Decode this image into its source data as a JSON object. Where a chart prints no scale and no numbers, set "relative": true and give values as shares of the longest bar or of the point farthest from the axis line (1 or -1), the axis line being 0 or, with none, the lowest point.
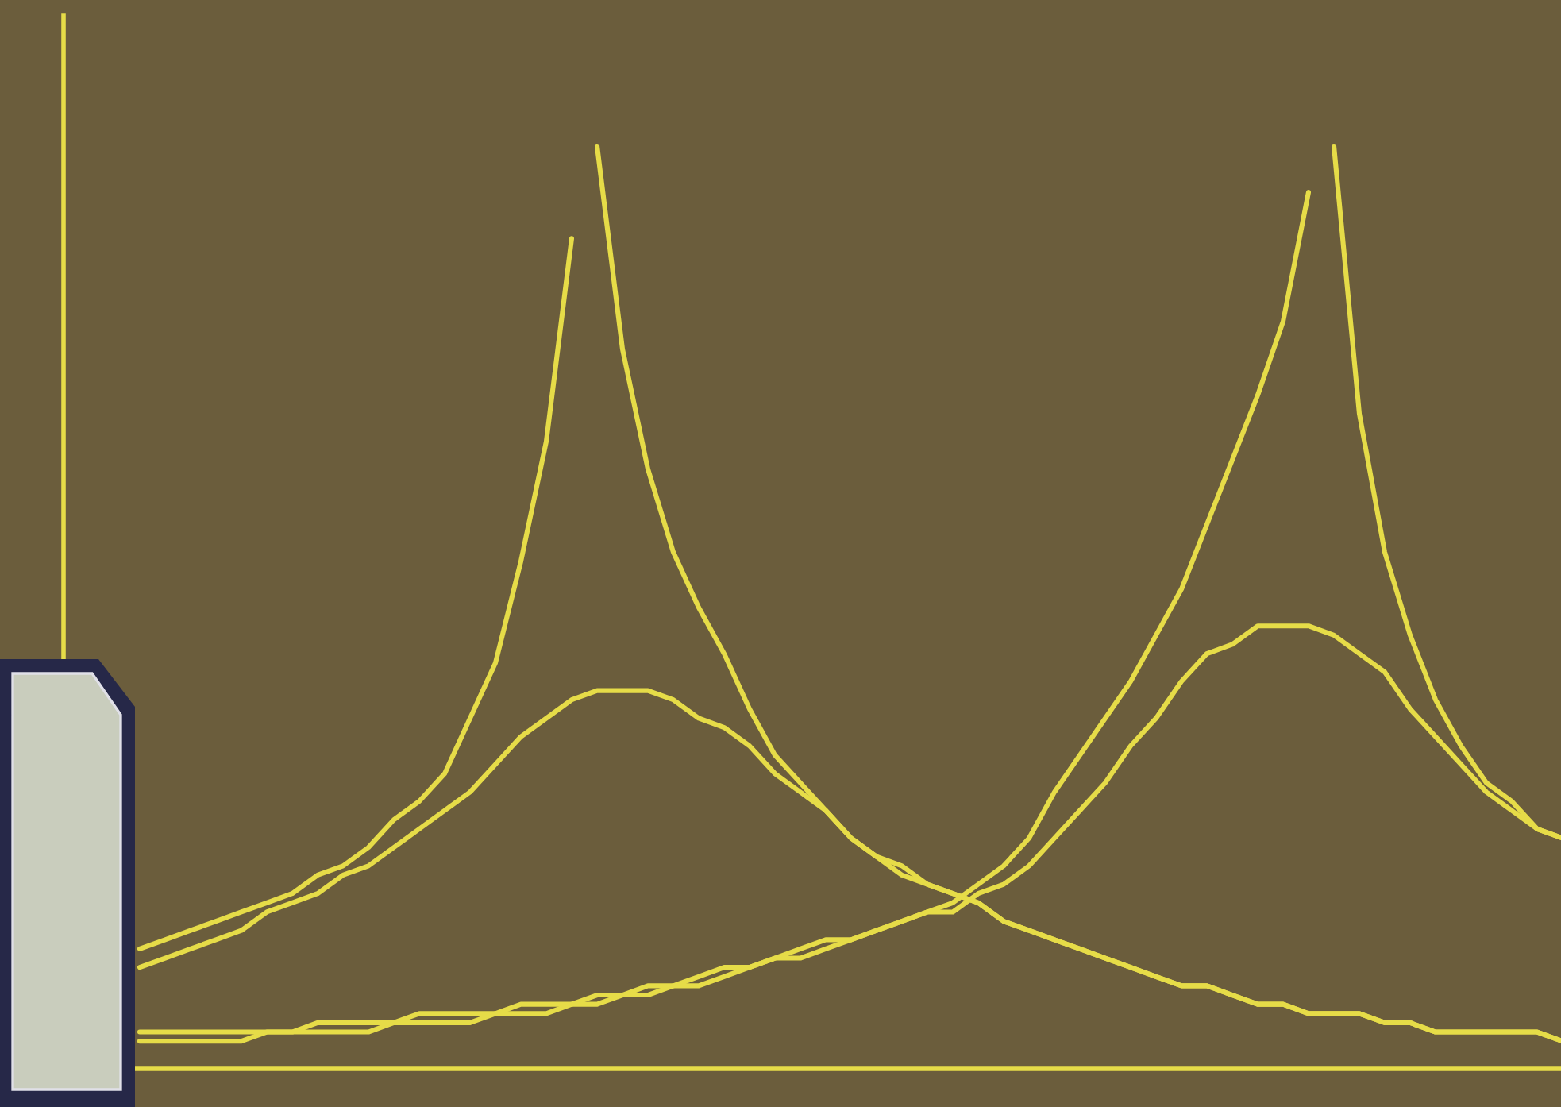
{
  "chart_data": {
    "type": "line",
    "relative": true,
    "marker": "none",
    "line_style": "solid",
    "categories": [
      null,
      null,
      null,
      null,
      null,
      null,
      null,
      null,
      null,
      null,
      null,
      null,
      null,
      null,
      null,
      null,
      null,
      null,
      null,
      null,
      null,
      null,
      null,
      null,
      null,
      null,
      null,
      null,
      null,
      null,
      null,
      null,
      null,
      null,
      null,
      null,
      null,
      null,
      null,
      null,
      null,
      null,
      null,
      null,
      null,
      null,
      null,
      null,
      null,
      null,
      null,
      null,
      null,
      null,
      null,
      null,
      null
    ],
    "series": [
      {
        "color": "#e6dc48",
        "values": [
          0.13,
          0.14,
          0.15,
          0.16,
          0.17,
          0.18,
          0.19,
          0.21,
          0.22,
          0.24,
          0.27,
          0.29,
          0.32,
          0.38,
          0.44,
          0.55,
          0.68,
          0.9,
          null,
          null,
          null,
          null,
          null,
          null,
          null,
          null,
          null,
          null,
          null,
          null,
          null,
          null,
          null,
          null,
          null,
          null,
          null,
          null,
          null,
          null,
          null,
          null,
          null,
          null,
          null,
          null,
          null,
          null,
          null,
          null,
          null,
          null,
          null,
          null,
          null,
          null,
          null
        ]
      },
      {
        "color": "#e6dc48",
        "values": [
          null,
          null,
          null,
          null,
          null,
          null,
          null,
          null,
          null,
          null,
          null,
          null,
          null,
          null,
          null,
          null,
          null,
          null,
          1.0,
          0.78,
          0.65,
          0.56,
          0.5,
          0.45,
          0.39,
          0.34,
          0.31,
          0.28,
          0.25,
          0.23,
          0.21,
          0.2,
          0.19,
          0.18,
          0.16,
          0.15,
          0.14,
          0.13,
          0.12,
          0.11,
          0.1,
          0.09,
          0.09,
          0.08,
          0.07,
          0.07,
          0.06,
          0.06,
          0.06,
          0.05,
          0.05,
          0.04,
          0.04,
          0.04,
          0.04,
          0.04,
          0.03
        ]
      },
      {
        "color": "#e6dc48",
        "values": [
          0.11,
          0.12,
          0.13,
          0.14,
          0.15,
          0.17,
          0.18,
          0.19,
          0.21,
          0.22,
          0.24,
          0.26,
          0.28,
          0.3,
          0.33,
          0.36,
          0.38,
          0.4,
          0.41,
          0.41,
          0.41,
          0.4,
          0.38,
          0.37,
          0.35,
          0.32,
          0.3,
          0.28,
          0.25,
          0.23,
          0.22,
          0.2,
          0.19,
          0.18,
          0.16,
          0.15,
          0.14,
          0.13,
          0.12,
          0.11,
          0.1,
          0.09,
          0.09,
          0.08,
          0.07,
          0.07,
          0.06,
          0.06,
          0.06,
          0.05,
          0.05,
          0.04,
          0.04,
          0.04,
          0.04,
          0.04,
          0.03
        ]
      },
      {
        "color": "#e6dc48",
        "values": [
          0.04,
          0.04,
          0.04,
          0.04,
          0.04,
          0.04,
          0.04,
          0.05,
          0.05,
          0.05,
          0.05,
          0.06,
          0.06,
          0.06,
          0.06,
          0.07,
          0.07,
          0.07,
          0.08,
          0.08,
          0.09,
          0.09,
          0.1,
          0.11,
          0.11,
          0.12,
          0.13,
          0.14,
          0.14,
          0.15,
          0.16,
          0.17,
          0.18,
          0.2,
          0.22,
          0.25,
          0.3,
          0.34,
          0.38,
          0.42,
          0.47,
          0.52,
          0.59,
          0.66,
          0.73,
          0.81,
          0.95,
          null,
          null,
          null,
          null,
          null,
          null,
          null,
          null,
          null,
          null
        ]
      },
      {
        "color": "#e6dc48",
        "values": [
          null,
          null,
          null,
          null,
          null,
          null,
          null,
          null,
          null,
          null,
          null,
          null,
          null,
          null,
          null,
          null,
          null,
          null,
          null,
          null,
          null,
          null,
          null,
          null,
          null,
          null,
          null,
          null,
          null,
          null,
          null,
          null,
          null,
          null,
          null,
          null,
          null,
          null,
          null,
          null,
          null,
          null,
          null,
          null,
          null,
          null,
          null,
          1.0,
          0.71,
          0.56,
          0.47,
          0.4,
          0.35,
          0.31,
          0.29,
          0.26,
          0.25
        ]
      },
      {
        "color": "#e6dc48",
        "values": [
          0.03,
          0.03,
          0.03,
          0.03,
          0.03,
          0.04,
          0.04,
          0.04,
          0.04,
          0.04,
          0.05,
          0.05,
          0.05,
          0.05,
          0.06,
          0.06,
          0.06,
          0.07,
          0.07,
          0.08,
          0.08,
          0.09,
          0.09,
          0.1,
          0.11,
          0.12,
          0.12,
          0.13,
          0.14,
          0.15,
          0.16,
          0.17,
          0.17,
          0.19,
          0.2,
          0.22,
          0.25,
          0.28,
          0.31,
          0.35,
          0.38,
          0.42,
          0.45,
          0.46,
          0.48,
          0.48,
          0.48,
          0.47,
          0.45,
          0.43,
          0.39,
          0.36,
          0.33,
          0.3,
          0.28,
          0.26,
          0.25
        ]
      }
    ]
  }
}
